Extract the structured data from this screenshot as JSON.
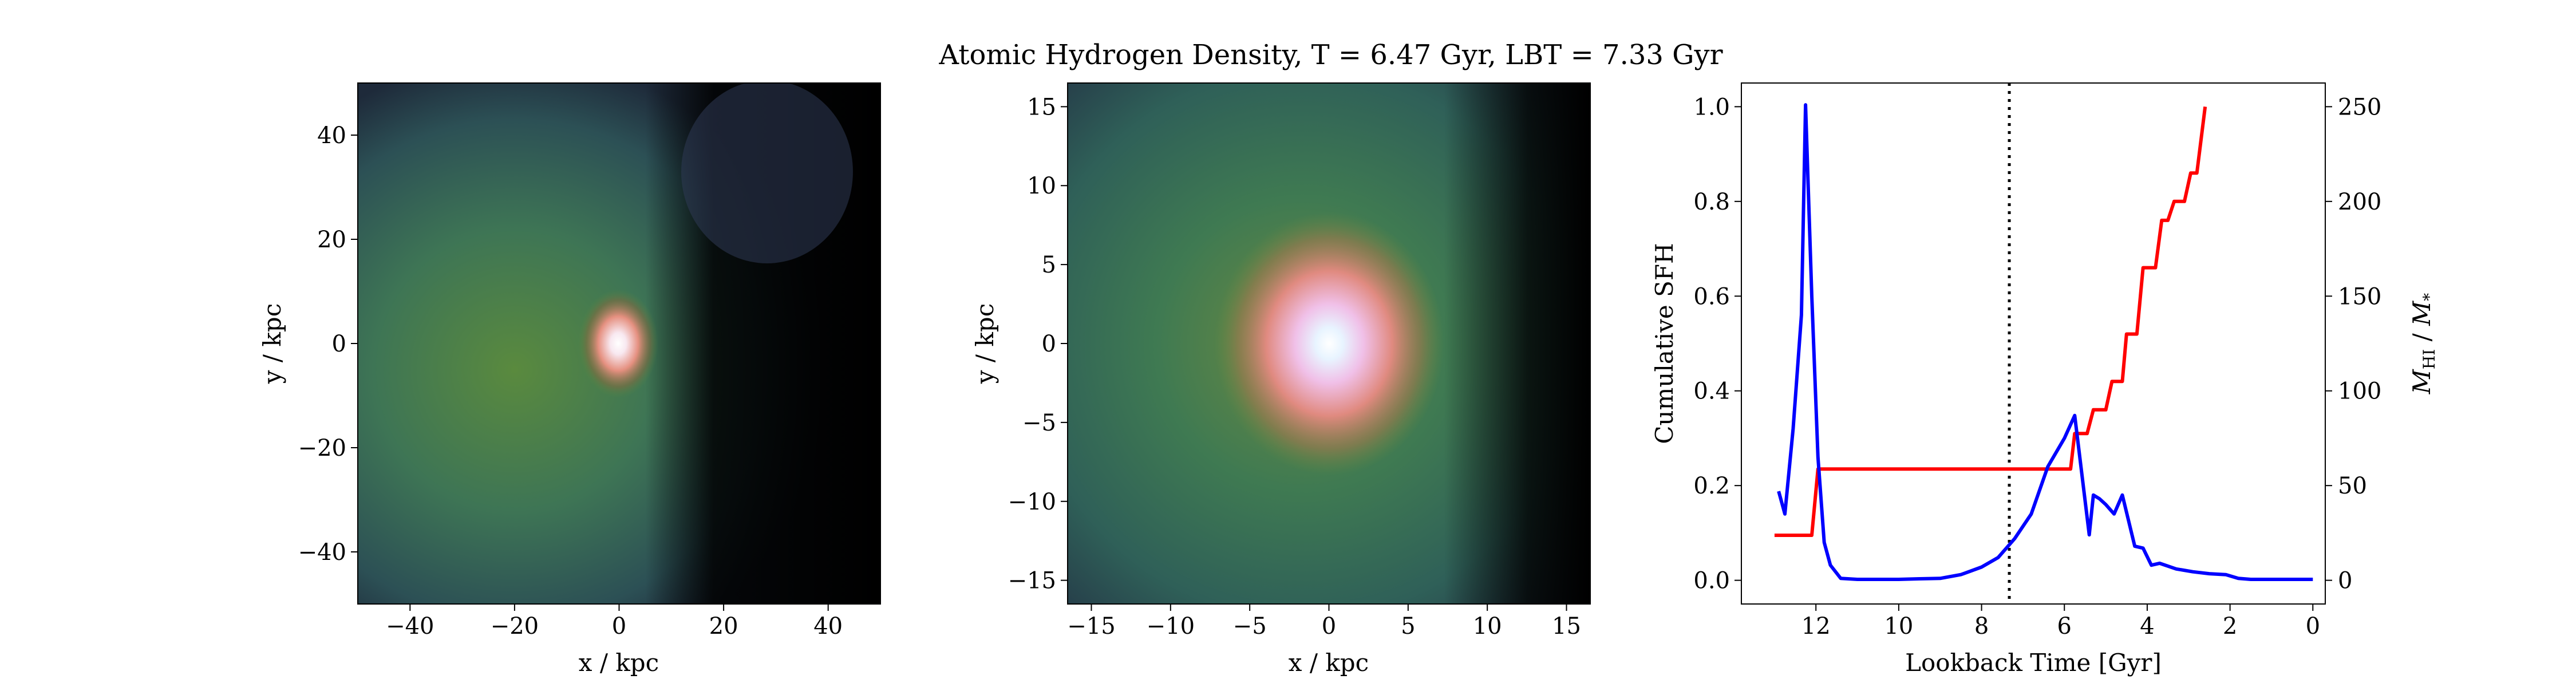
{
  "figure": {
    "title": "Atomic Hydrogen Density, T = 6.47 Gyr, LBT = 7.33 Gyr"
  },
  "colors": {
    "cumulative_sfh": "#ff0000",
    "mhi_ratio": "#0000ff",
    "marker_line": "#000000",
    "map_background": "#000000",
    "map_gas": "#3f7a52",
    "map_core": "#ffffff",
    "map_ring": "#e88a8a"
  },
  "chart_data": [
    {
      "type": "heatmap",
      "id": "panel-1",
      "description_quantity": "HI density map",
      "xlabel": "x / kpc",
      "ylabel": "y / kpc",
      "xlim": [
        -50,
        50
      ],
      "ylim": [
        -50,
        50
      ],
      "xticks": [
        -40,
        -20,
        0,
        20,
        40
      ],
      "yticks": [
        -40,
        -20,
        0,
        20,
        40
      ],
      "xtick_labels": [
        "−40",
        "−20",
        "0",
        "20",
        "40"
      ],
      "ytick_labels": [
        "−40",
        "−20",
        "0",
        "20",
        "40"
      ],
      "peak": {
        "x": 0,
        "y": 0
      }
    },
    {
      "type": "heatmap",
      "id": "panel-2",
      "xlabel": "x / kpc",
      "ylabel": "y / kpc",
      "xlim": [
        -16.5,
        16.5
      ],
      "ylim": [
        -16.5,
        16.5
      ],
      "xticks": [
        -15,
        -10,
        -5,
        0,
        5,
        10,
        15
      ],
      "yticks": [
        -15,
        -10,
        -5,
        0,
        5,
        10,
        15
      ],
      "xtick_labels": [
        "−15",
        "−10",
        "−5",
        "0",
        "5",
        "10",
        "15"
      ],
      "ytick_labels": [
        "−15",
        "−10",
        "−5",
        "0",
        "5",
        "10",
        "15"
      ],
      "peak": {
        "x": 0,
        "y": 0
      }
    },
    {
      "type": "line",
      "id": "panel-3",
      "xlabel": "Lookback Time [Gyr]",
      "ylabel_left": "Cumulative SFH",
      "ylabel_right": "M_HI / M_*",
      "xlim": [
        13.8,
        -0.3
      ],
      "ylim_left": [
        -0.05,
        1.05
      ],
      "ylim_right": [
        -12.5,
        262.5
      ],
      "xticks": [
        12,
        10,
        8,
        6,
        4,
        2,
        0
      ],
      "xtick_labels": [
        "12",
        "10",
        "8",
        "6",
        "4",
        "2",
        "0"
      ],
      "yticks_left": [
        0.0,
        0.2,
        0.4,
        0.6,
        0.8,
        1.0
      ],
      "ytick_labels_left": [
        "0.0",
        "0.2",
        "0.4",
        "0.6",
        "0.8",
        "1.0"
      ],
      "yticks_right": [
        0,
        50,
        100,
        150,
        200,
        250
      ],
      "ytick_labels_right": [
        "0",
        "50",
        "100",
        "150",
        "200",
        "250"
      ],
      "vline_x": 7.33,
      "series": [
        {
          "key": "cumulative_sfh",
          "axis": "left",
          "x": [
            13.0,
            12.1,
            11.95,
            5.85,
            5.75,
            5.45,
            5.3,
            5.0,
            4.85,
            4.6,
            4.5,
            4.25,
            4.1,
            3.8,
            3.65,
            3.5,
            3.35,
            3.1,
            2.95,
            2.8,
            2.6
          ],
          "y": [
            0.095,
            0.095,
            0.235,
            0.235,
            0.31,
            0.31,
            0.36,
            0.36,
            0.42,
            0.42,
            0.52,
            0.52,
            0.66,
            0.66,
            0.76,
            0.76,
            0.8,
            0.8,
            0.86,
            0.86,
            1.0
          ]
        },
        {
          "key": "mhi_ratio",
          "axis": "right",
          "x": [
            12.9,
            12.75,
            12.55,
            12.35,
            12.25,
            12.1,
            11.95,
            11.8,
            11.65,
            11.4,
            11.0,
            10.5,
            10.0,
            9.5,
            9.0,
            8.5,
            8.0,
            7.6,
            7.2,
            6.8,
            6.4,
            6.0,
            5.75,
            5.6,
            5.4,
            5.3,
            5.15,
            5.0,
            4.8,
            4.6,
            4.3,
            4.1,
            3.9,
            3.7,
            3.3,
            2.9,
            2.5,
            2.1,
            1.8,
            1.5,
            1.0,
            0.0
          ],
          "y": [
            47,
            35,
            80,
            140,
            251,
            150,
            65,
            20,
            8,
            1,
            0.5,
            0.5,
            0.5,
            0.8,
            1,
            3,
            7,
            12,
            22,
            35,
            60,
            75,
            87,
            60,
            24,
            45,
            43,
            40,
            35,
            45,
            18,
            17,
            8,
            9,
            6,
            4.5,
            3.5,
            3,
            1,
            0.5,
            0.5,
            0.5
          ]
        }
      ]
    }
  ]
}
